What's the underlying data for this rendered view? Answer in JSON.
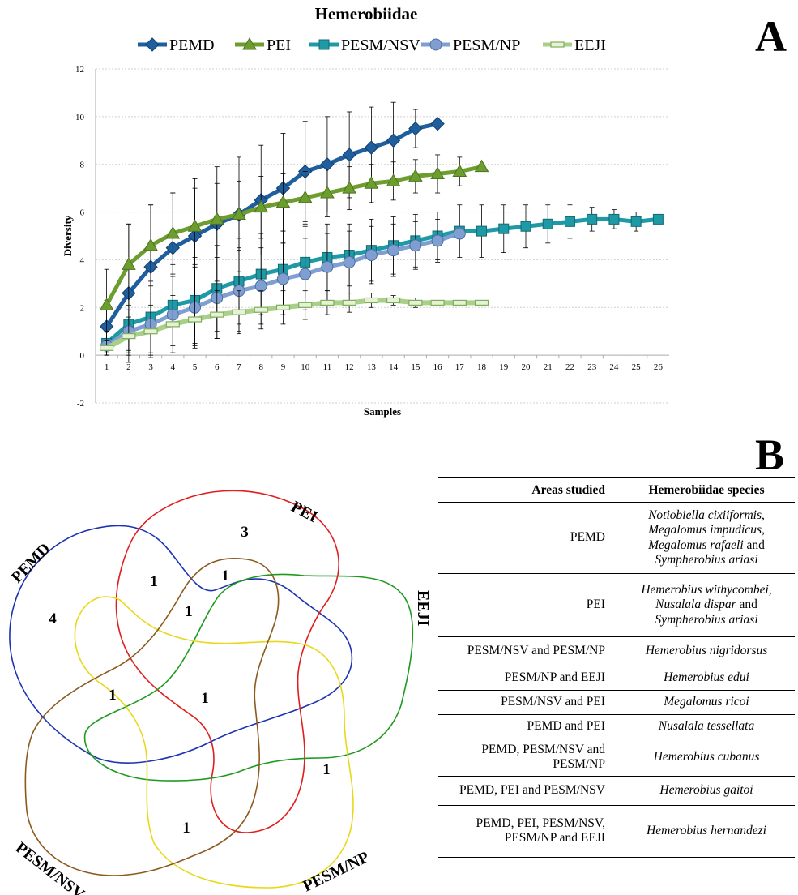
{
  "panel_a_letter": "A",
  "panel_b_letter": "B",
  "chart_data": {
    "type": "line",
    "title": "Hemerobiidae",
    "xlabel": "Samples",
    "ylabel": "Diversity",
    "ylim": [
      -2,
      12
    ],
    "yticks": [
      -2,
      0,
      2,
      4,
      6,
      8,
      10,
      12
    ],
    "xticks": [
      1,
      2,
      3,
      4,
      5,
      6,
      7,
      8,
      9,
      10,
      11,
      12,
      13,
      14,
      15,
      16,
      17,
      18,
      19,
      20,
      21,
      22,
      23,
      24,
      25,
      26
    ],
    "grid": "horizontal",
    "legend_position": "top",
    "series": [
      {
        "name": "PEMD",
        "color": "#1f5f9e",
        "marker": "diamond",
        "x": [
          1,
          2,
          3,
          4,
          5,
          6,
          7,
          8,
          9,
          10,
          11,
          12,
          13,
          14,
          15,
          16
        ],
        "y": [
          1.2,
          2.6,
          3.7,
          4.5,
          5.0,
          5.5,
          5.9,
          6.5,
          7.0,
          7.7,
          8.0,
          8.4,
          8.7,
          9.0,
          9.5,
          9.7
        ],
        "err": [
          1.1,
          2.9,
          2.6,
          2.3,
          2.4,
          2.4,
          2.4,
          2.3,
          2.3,
          2.1,
          2.0,
          1.8,
          1.7,
          1.6,
          0.8,
          0
        ]
      },
      {
        "name": "PEI",
        "color": "#6d9d2f",
        "marker": "triangle",
        "x": [
          1,
          2,
          3,
          4,
          5,
          6,
          7,
          8,
          9,
          10,
          11,
          12,
          13,
          14,
          15,
          16,
          17,
          18
        ],
        "y": [
          2.1,
          3.8,
          4.6,
          5.1,
          5.4,
          5.7,
          5.9,
          6.2,
          6.4,
          6.6,
          6.8,
          7.0,
          7.2,
          7.3,
          7.5,
          7.6,
          7.7,
          7.9
        ],
        "err": [
          1.5,
          1.7,
          1.7,
          1.7,
          1.6,
          1.5,
          1.4,
          1.3,
          1.2,
          1.1,
          1.0,
          0.9,
          0.8,
          0.8,
          0.7,
          0.8,
          0.6,
          0
        ]
      },
      {
        "name": "PESM/NSV",
        "color": "#1e9aa6",
        "marker": "square",
        "x": [
          1,
          2,
          3,
          4,
          5,
          6,
          7,
          8,
          9,
          10,
          11,
          12,
          13,
          14,
          15,
          16,
          17,
          18,
          19,
          20,
          21,
          22,
          23,
          24,
          25,
          26
        ],
        "y": [
          0.5,
          1.3,
          1.6,
          2.1,
          2.3,
          2.8,
          3.1,
          3.4,
          3.6,
          3.9,
          4.1,
          4.2,
          4.4,
          4.6,
          4.8,
          5.0,
          5.2,
          5.2,
          5.3,
          5.4,
          5.5,
          5.6,
          5.7,
          5.7,
          5.6,
          5.7
        ],
        "err": [
          0.5,
          1.1,
          1.5,
          1.7,
          1.8,
          1.8,
          1.8,
          1.7,
          1.6,
          1.5,
          1.4,
          1.3,
          1.3,
          1.2,
          1.1,
          1.0,
          1.1,
          1.1,
          1.0,
          0.9,
          0.8,
          0.7,
          0.5,
          0.4,
          0.4,
          0
        ]
      },
      {
        "name": "PESM/NP",
        "color": "#7f9fd3",
        "marker": "circle",
        "x": [
          1,
          2,
          3,
          4,
          5,
          6,
          7,
          8,
          9,
          10,
          11,
          12,
          13,
          14,
          15,
          16,
          17
        ],
        "y": [
          0.4,
          1.0,
          1.3,
          1.7,
          2.0,
          2.4,
          2.7,
          2.9,
          3.2,
          3.4,
          3.7,
          3.9,
          4.2,
          4.4,
          4.6,
          4.8,
          5.1
        ],
        "err": [
          0.4,
          0.9,
          1.3,
          1.6,
          1.7,
          1.7,
          1.7,
          1.6,
          1.5,
          1.5,
          1.4,
          1.3,
          1.2,
          1.1,
          1.0,
          0.9,
          0
        ]
      },
      {
        "name": "EEJI",
        "color": "#a9cf8a",
        "marker": "bar",
        "x": [
          1,
          2,
          3,
          4,
          5,
          6,
          7,
          8,
          9,
          10,
          11,
          12,
          13,
          14,
          15,
          16,
          17,
          18
        ],
        "y": [
          0.3,
          0.8,
          1.0,
          1.3,
          1.5,
          1.7,
          1.8,
          1.9,
          2.0,
          2.1,
          2.2,
          2.2,
          2.3,
          2.3,
          2.2,
          2.2,
          2.2,
          2.2
        ],
        "err": [
          0.3,
          0.8,
          1.1,
          1.2,
          1.1,
          1.0,
          0.9,
          0.8,
          0.7,
          0.6,
          0.5,
          0.4,
          0.3,
          0.2,
          0.2,
          0.1,
          0.05,
          0
        ]
      }
    ]
  },
  "venn": {
    "sets": [
      {
        "name": "PEMD",
        "color": "#1d33b3"
      },
      {
        "name": "PEI",
        "color": "#e11d1d"
      },
      {
        "name": "EEJI",
        "color": "#1f9a1f"
      },
      {
        "name": "PESM/NP",
        "color": "#e8d81a"
      },
      {
        "name": "PESM/NSV",
        "color": "#8b5a1e"
      }
    ],
    "counts": [
      "4",
      "3",
      "1",
      "1",
      "1",
      "1",
      "1",
      "1",
      "1"
    ]
  },
  "table": {
    "headers": [
      "Areas studied",
      "Hemerobiidae species"
    ],
    "rows": [
      {
        "area": "PEMD",
        "species": [
          "Notiobiella cixiiformis,",
          "Megalomus impudicus,",
          "Megalomus rafaeli",
          " and ",
          "Sympherobius ariasi"
        ]
      },
      {
        "area": "PEI",
        "species": [
          "Hemerobius withycombei,",
          "Nusalala dispar",
          " and ",
          "Sympherobius ariasi"
        ]
      },
      {
        "area": "PESM/NSV and PESM/NP",
        "species": [
          "Hemerobius nigridorsus"
        ]
      },
      {
        "area": "PESM/NP and EEJI",
        "species": [
          "Hemerobius edui"
        ]
      },
      {
        "area": "PESM/NSV and PEI",
        "species": [
          "Megalomus ricoi"
        ]
      },
      {
        "area": "PEMD and PEI",
        "species": [
          "Nusalala tessellata"
        ]
      },
      {
        "area": "PEMD, PESM/NSV and PESM/NP",
        "species": [
          "Hemerobius cubanus"
        ]
      },
      {
        "area": "PEMD, PEI and PESM/NSV",
        "species": [
          "Hemerobius gaitoi"
        ]
      },
      {
        "area": "PEMD, PEI, PESM/NSV, PESM/NP and EEJI",
        "species": [
          "Hemerobius hernandezi"
        ]
      }
    ]
  }
}
